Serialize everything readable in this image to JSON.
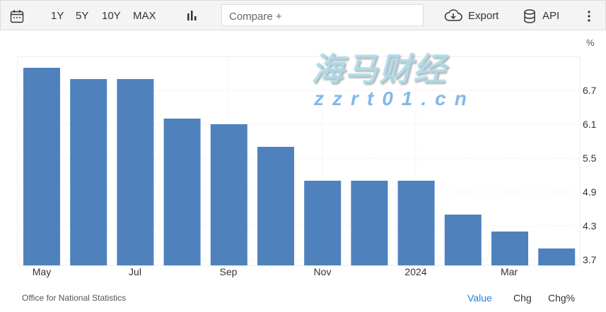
{
  "toolbar": {
    "ranges": [
      "1Y",
      "5Y",
      "10Y",
      "MAX"
    ],
    "compare_placeholder": "Compare +",
    "export": "Export",
    "api": "API"
  },
  "chart_data": {
    "type": "bar",
    "categories": [
      "May 2023",
      "Jun 2023",
      "Jul 2023",
      "Aug 2023",
      "Sep 2023",
      "Oct 2023",
      "Nov 2023",
      "Dec 2023",
      "Jan 2024",
      "Feb 2024",
      "Mar 2024",
      "Apr 2024"
    ],
    "values": [
      7.1,
      6.9,
      6.9,
      6.2,
      6.1,
      5.7,
      5.1,
      5.1,
      5.1,
      4.5,
      4.2,
      3.9
    ],
    "x_tick_labels": [
      "May",
      "Jul",
      "Sep",
      "Nov",
      "2024",
      "Mar"
    ],
    "y_ticks": [
      3.7,
      4.3,
      4.9,
      5.5,
      6.1,
      6.7
    ],
    "y_unit": "%",
    "ylim": [
      3.6,
      7.3
    ],
    "bar_color": "#4f81bd",
    "grid": true,
    "y_axis_side": "right"
  },
  "footer": {
    "source": "Office for National Statistics",
    "value": "Value",
    "chg": "Chg",
    "chg_pct": "Chg%"
  },
  "watermark": {
    "text": "海马财经",
    "url": "zzrt01.cn"
  }
}
